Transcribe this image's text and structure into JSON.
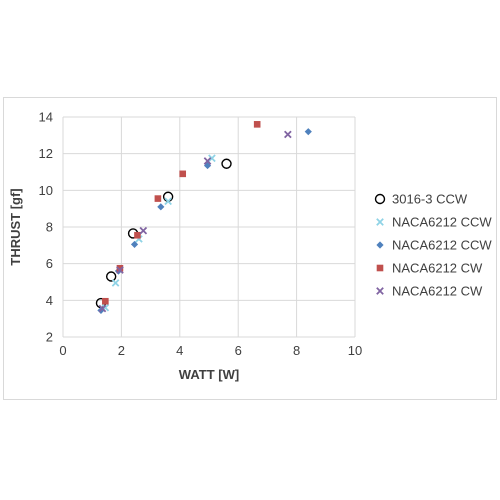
{
  "chart_data": {
    "type": "scatter",
    "title": "",
    "xlabel": "WATT [W]",
    "ylabel": "THRUST [gf]",
    "xlim": [
      0,
      10
    ],
    "ylim": [
      2,
      14
    ],
    "xticks": [
      "0",
      "2",
      "4",
      "6",
      "8",
      "10"
    ],
    "yticks": [
      "2",
      "4",
      "6",
      "8",
      "10",
      "12",
      "14"
    ],
    "grid": true,
    "legend_position": "right",
    "series": [
      {
        "name": "3016-3 CCW",
        "marker": "circle-open",
        "color": "#000000",
        "x": [
          1.3,
          1.65,
          2.4,
          3.6,
          5.6
        ],
        "y": [
          3.85,
          5.3,
          7.65,
          9.65,
          11.45
        ]
      },
      {
        "name": "NACA6212 CCW",
        "marker": "x",
        "color": "#8fd3e6",
        "x": [
          1.45,
          1.8,
          2.6,
          3.6,
          5.1
        ],
        "y": [
          3.6,
          4.95,
          7.35,
          9.4,
          11.75
        ]
      },
      {
        "name": "NACA6212 CCW",
        "marker": "diamond",
        "color": "#4f81bd",
        "x": [
          1.3,
          1.9,
          2.45,
          3.35,
          4.95,
          8.4
        ],
        "y": [
          3.45,
          5.6,
          7.05,
          9.1,
          11.35,
          13.2
        ]
      },
      {
        "name": "NACA6212 CW",
        "marker": "square",
        "color": "#c0504d",
        "x": [
          1.45,
          1.95,
          2.55,
          3.25,
          4.1,
          6.65
        ],
        "y": [
          3.95,
          5.75,
          7.55,
          9.55,
          10.9,
          13.6
        ]
      },
      {
        "name": "NACA6212 CW",
        "marker": "x",
        "color": "#8064a2",
        "x": [
          1.35,
          1.95,
          2.75,
          4.95,
          7.7
        ],
        "y": [
          3.55,
          5.65,
          7.8,
          11.6,
          13.05
        ]
      }
    ]
  }
}
